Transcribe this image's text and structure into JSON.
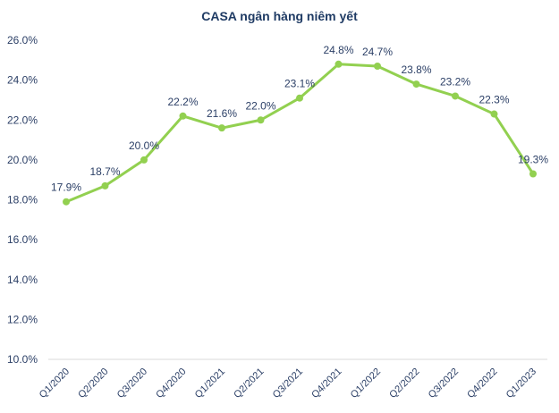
{
  "chart_data": {
    "type": "line",
    "title": "CASA ngân hàng niêm yết",
    "xlabel": "",
    "ylabel": "",
    "categories": [
      "Q1/2020",
      "Q2/2020",
      "Q3/2020",
      "Q4/2020",
      "Q1/2021",
      "Q2/2021",
      "Q3/2021",
      "Q4/2021",
      "Q1/2022",
      "Q2/2022",
      "Q3/2022",
      "Q4/2022",
      "Q1/2023"
    ],
    "series": [
      {
        "values": [
          17.9,
          18.7,
          20.0,
          22.2,
          21.6,
          22.0,
          23.1,
          24.8,
          24.7,
          23.8,
          23.2,
          22.3,
          19.3
        ],
        "labels": [
          "17.9%",
          "18.7%",
          "20.0%",
          "22.2%",
          "21.6%",
          "22.0%",
          "23.1%",
          "24.8%",
          "24.7%",
          "23.8%",
          "23.2%",
          "22.3%",
          "19.3%"
        ],
        "color": "#92d050"
      }
    ],
    "ylim": [
      10,
      26
    ],
    "yticks": [
      10,
      12,
      14,
      16,
      18,
      20,
      22,
      24,
      26
    ],
    "ytick_labels": [
      "10.0%",
      "12.0%",
      "14.0%",
      "16.0%",
      "18.0%",
      "20.0%",
      "22.0%",
      "24.0%",
      "26.0%"
    ],
    "grid": false,
    "legend": "none"
  }
}
